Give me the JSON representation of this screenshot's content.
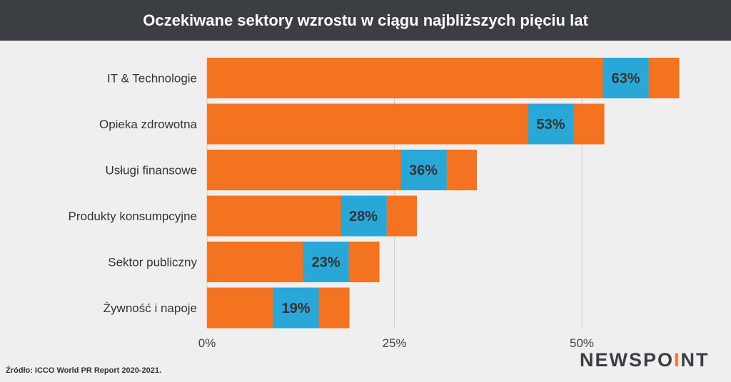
{
  "header": {
    "title": "Oczekiwane sektory wzrostu w ciągu najbliższych pięciu lat"
  },
  "footer": {
    "source": "Źródło: ICCO World PR Report 2020-2021.",
    "logo_main": "NEWSPO",
    "logo_accent": "I",
    "logo_end": "NT"
  },
  "colors": {
    "bar": "#f47321",
    "label_box": "#29a8d8",
    "header_bg": "#3b3f44",
    "background": "#efefef",
    "grid": "#cfcfcf"
  },
  "chart_data": {
    "type": "bar",
    "orientation": "horizontal",
    "title": "Oczekiwane sektory wzrostu w ciągu najbliższych pięciu lat",
    "categories": [
      "IT & Technologie",
      "Opieka zdrowotna",
      "Usługi finansowe",
      "Produkty konsumpcyjne",
      "Sektor publiczny",
      "Żywność i napoje"
    ],
    "values": [
      63,
      53,
      36,
      28,
      23,
      19
    ],
    "data_labels": [
      "63%",
      "53%",
      "36%",
      "28%",
      "23%",
      "19%"
    ],
    "x_ticks": [
      "0%",
      "25%",
      "50%"
    ],
    "x_tick_values": [
      0,
      25,
      50
    ],
    "xlim": [
      0,
      63
    ],
    "grid": true,
    "legend": "none"
  }
}
